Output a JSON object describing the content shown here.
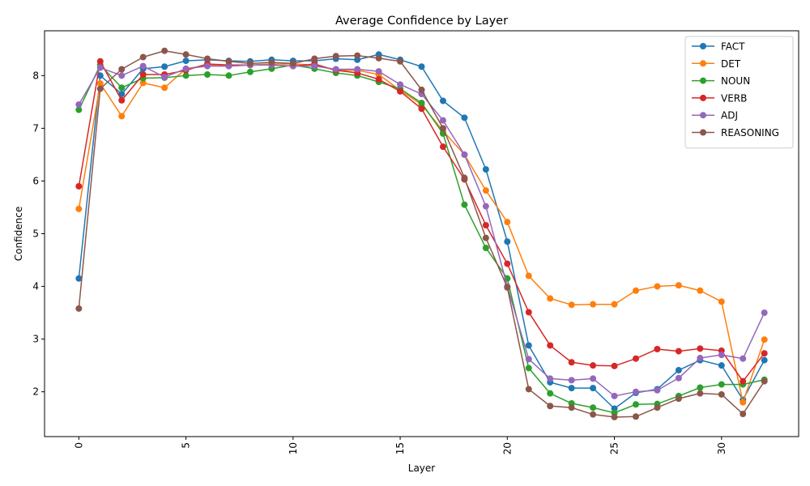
{
  "chart_data": {
    "type": "line",
    "title": "Average Confidence by Layer",
    "xlabel": "Layer",
    "ylabel": "Confidence",
    "xlim": [
      -1.6,
      33.6
    ],
    "ylim": [
      1.15,
      8.85
    ],
    "xticks": [
      0,
      5,
      10,
      15,
      20,
      25,
      30
    ],
    "yticks": [
      2,
      3,
      4,
      5,
      6,
      7,
      8
    ],
    "xtick_rotation": 90,
    "grid": false,
    "legend_position": "upper right",
    "x": [
      0,
      1,
      2,
      3,
      4,
      5,
      6,
      7,
      8,
      9,
      10,
      11,
      12,
      13,
      14,
      15,
      16,
      17,
      18,
      19,
      20,
      21,
      22,
      23,
      24,
      25,
      26,
      27,
      28,
      29,
      30,
      31,
      32
    ],
    "series": [
      {
        "name": "FACT",
        "color": "#1f77b4",
        "values": [
          4.15,
          8.0,
          7.65,
          8.13,
          8.17,
          8.28,
          8.3,
          8.28,
          8.27,
          8.3,
          8.28,
          8.28,
          8.32,
          8.3,
          8.4,
          8.3,
          8.17,
          7.52,
          7.2,
          6.22,
          4.85,
          2.88,
          2.18,
          2.07,
          2.07,
          1.68,
          1.98,
          2.05,
          2.41,
          2.6,
          2.5,
          1.85,
          2.6
        ]
      },
      {
        "name": "DET",
        "color": "#ff7f0e",
        "values": [
          5.47,
          7.85,
          7.23,
          7.86,
          7.77,
          8.13,
          8.2,
          8.18,
          8.2,
          8.22,
          8.22,
          8.2,
          8.1,
          8.1,
          8.02,
          7.72,
          7.45,
          6.95,
          6.5,
          5.82,
          5.22,
          4.2,
          3.77,
          3.65,
          3.66,
          3.66,
          3.92,
          4.0,
          4.02,
          3.92,
          3.71,
          1.8,
          2.99
        ]
      },
      {
        "name": "NOUN",
        "color": "#2ca02c",
        "values": [
          7.35,
          8.2,
          7.77,
          7.95,
          7.96,
          8.0,
          8.02,
          8.0,
          8.07,
          8.13,
          8.2,
          8.13,
          8.05,
          8.0,
          7.88,
          7.75,
          7.48,
          6.9,
          5.55,
          4.73,
          4.15,
          2.45,
          1.97,
          1.78,
          1.7,
          1.6,
          1.76,
          1.77,
          1.92,
          2.08,
          2.14,
          2.14,
          2.23
        ]
      },
      {
        "name": "VERB",
        "color": "#d62728",
        "values": [
          5.9,
          8.27,
          7.53,
          8.02,
          8.02,
          8.1,
          8.22,
          8.2,
          8.2,
          8.2,
          8.18,
          8.22,
          8.1,
          8.05,
          7.93,
          7.7,
          7.37,
          6.65,
          6.03,
          5.16,
          4.43,
          3.51,
          2.88,
          2.56,
          2.5,
          2.49,
          2.63,
          2.81,
          2.77,
          2.82,
          2.78,
          2.2,
          2.73
        ]
      },
      {
        "name": "ADJ",
        "color": "#9467bd",
        "values": [
          7.45,
          8.15,
          8.0,
          8.18,
          7.97,
          8.13,
          8.18,
          8.18,
          8.2,
          8.2,
          8.18,
          8.18,
          8.12,
          8.12,
          8.08,
          7.83,
          7.65,
          7.15,
          6.5,
          5.52,
          4.0,
          2.62,
          2.25,
          2.22,
          2.25,
          1.92,
          2.0,
          2.03,
          2.26,
          2.64,
          2.7,
          2.63,
          3.5
        ]
      },
      {
        "name": "REASONING",
        "color": "#8c564b",
        "values": [
          3.58,
          7.75,
          8.12,
          8.35,
          8.47,
          8.4,
          8.32,
          8.27,
          8.23,
          8.25,
          8.23,
          8.32,
          8.37,
          8.38,
          8.33,
          8.27,
          7.73,
          7.0,
          6.06,
          4.92,
          3.98,
          2.05,
          1.73,
          1.7,
          1.57,
          1.52,
          1.53,
          1.7,
          1.87,
          1.97,
          1.95,
          1.58,
          2.2
        ]
      }
    ]
  }
}
